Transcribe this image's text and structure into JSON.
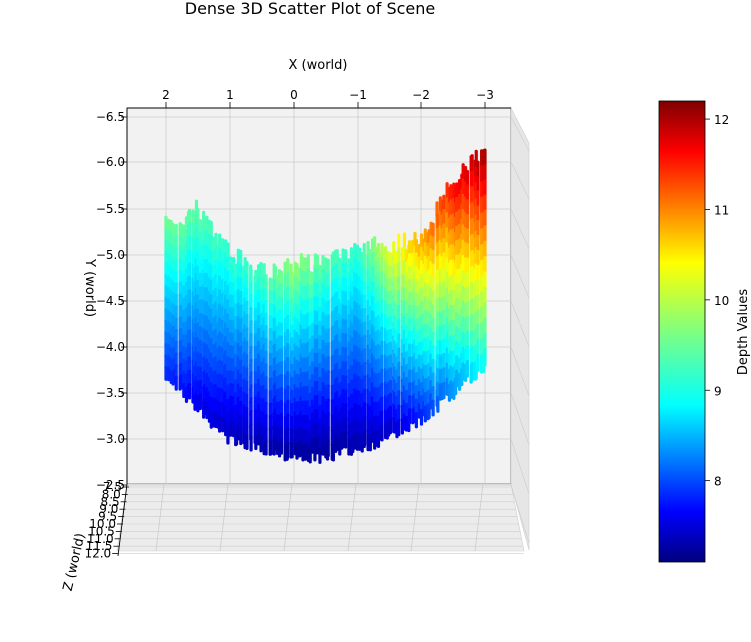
{
  "chart_data": {
    "type": "scatter",
    "projection": "3d",
    "title": "Dense 3D Scatter Plot of Scene",
    "xlabel": "X (world)",
    "ylabel": "Y (world)",
    "zlabel": "Z (world)",
    "x_ticks": [
      "2",
      "1",
      "0",
      "−1",
      "−2",
      "−3"
    ],
    "y_ticks": [
      "−6.5",
      "−6.0",
      "−5.5",
      "−5.0",
      "−4.5",
      "−4.0",
      "−3.5",
      "−3.0",
      "−2.5"
    ],
    "z_ticks": [
      "7.5",
      "8.0",
      "8.5",
      "9.0",
      "9.5",
      "10.0",
      "10.5",
      "11.0",
      "11.5",
      "12.0"
    ],
    "xlim": [
      2.5,
      -3.5
    ],
    "ylim": [
      -6.5,
      -2.5
    ],
    "zlim": [
      7.5,
      12.0
    ],
    "grid": true,
    "colormap": "jet",
    "colorbar": {
      "label": "Depth Values",
      "ticks": [
        "8",
        "9",
        "10",
        "11",
        "12"
      ],
      "range": [
        7.1,
        12.2
      ]
    },
    "point_cloud_profile": {
      "description_x": [
        2.0,
        1.5,
        1.0,
        0.5,
        0.0,
        -0.5,
        -1.0,
        -1.5,
        -2.0,
        -2.5,
        -3.0
      ],
      "top_y": [
        -5.3,
        -5.5,
        -5.0,
        -4.8,
        -4.9,
        -4.9,
        -5.1,
        -5.1,
        -5.2,
        -5.8,
        -6.1
      ],
      "bottom_y": [
        -3.7,
        -3.3,
        -3.0,
        -2.9,
        -2.8,
        -2.8,
        -2.9,
        -3.0,
        -3.2,
        -3.5,
        -3.8
      ],
      "depth_top": [
        9.6,
        9.5,
        9.3,
        9.4,
        9.8,
        9.5,
        9.3,
        10.2,
        10.8,
        11.6,
        12.1
      ],
      "depth_bottom": [
        7.9,
        7.6,
        7.4,
        7.3,
        7.2,
        7.2,
        7.3,
        7.4,
        7.8,
        8.4,
        9.0
      ]
    }
  }
}
